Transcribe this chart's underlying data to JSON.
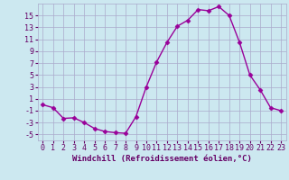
{
  "x": [
    0,
    1,
    2,
    3,
    4,
    5,
    6,
    7,
    8,
    9,
    10,
    11,
    12,
    13,
    14,
    15,
    16,
    17,
    18,
    19,
    20,
    21,
    22,
    23
  ],
  "y": [
    0.0,
    -0.5,
    -2.3,
    -2.2,
    -3.0,
    -4.0,
    -4.5,
    -4.7,
    -4.8,
    -2.0,
    3.0,
    7.2,
    10.5,
    13.2,
    14.2,
    16.0,
    15.8,
    16.5,
    15.0,
    10.5,
    5.0,
    2.5,
    -0.5,
    -1.0
  ],
  "line_color": "#990099",
  "marker": "D",
  "markersize": 2.5,
  "linewidth": 1.0,
  "xlabel": "Windchill (Refroidissement éolien,°C)",
  "ylabel_ticks": [
    -5,
    -3,
    -1,
    1,
    3,
    5,
    7,
    9,
    11,
    13,
    15
  ],
  "ylim": [
    -6,
    17
  ],
  "xlim": [
    -0.5,
    23.5
  ],
  "background_color": "#cce8f0",
  "grid_color": "#aaaacc",
  "tick_color": "#660066",
  "label_color": "#660066",
  "xlabel_fontsize": 6.5,
  "tick_fontsize": 6.0
}
